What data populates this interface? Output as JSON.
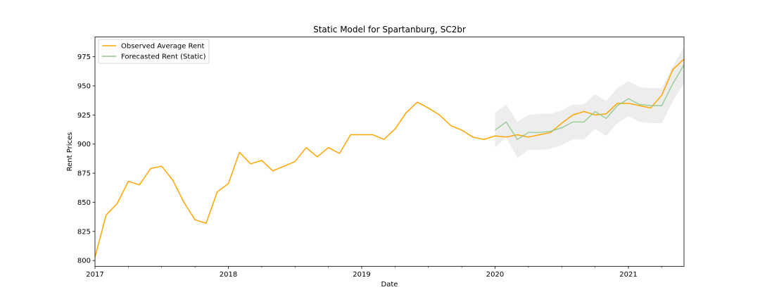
{
  "chart_data": {
    "type": "line",
    "title": "Static Model for Spartanburg, SC2br",
    "xlabel": "Date",
    "ylabel": "Rent Prices",
    "xlim": [
      "2017-01",
      "2021-06"
    ],
    "ylim": [
      795,
      992
    ],
    "x_ticks": [
      "2017",
      "2018",
      "2019",
      "2020",
      "2021"
    ],
    "y_ticks": [
      800,
      825,
      850,
      875,
      900,
      925,
      950,
      975
    ],
    "grid": false,
    "legend_position": "upper-left",
    "series": [
      {
        "name": "Observed Average Rent",
        "color": "#ffa500",
        "x": [
          "2017-01",
          "2017-02",
          "2017-03",
          "2017-04",
          "2017-05",
          "2017-06",
          "2017-07",
          "2017-08",
          "2017-09",
          "2017-10",
          "2017-11",
          "2017-12",
          "2018-01",
          "2018-02",
          "2018-03",
          "2018-04",
          "2018-05",
          "2018-06",
          "2018-07",
          "2018-08",
          "2018-09",
          "2018-10",
          "2018-11",
          "2018-12",
          "2019-01",
          "2019-02",
          "2019-03",
          "2019-04",
          "2019-05",
          "2019-06",
          "2019-07",
          "2019-08",
          "2019-09",
          "2019-10",
          "2019-11",
          "2019-12",
          "2020-01",
          "2020-02",
          "2020-03",
          "2020-04",
          "2020-05",
          "2020-06",
          "2020-07",
          "2020-08",
          "2020-09",
          "2020-10",
          "2020-11",
          "2020-12",
          "2021-01",
          "2021-02",
          "2021-03",
          "2021-04",
          "2021-05",
          "2021-06"
        ],
        "values": [
          803,
          839,
          849,
          868,
          865,
          879,
          881,
          869,
          850,
          835,
          832,
          859,
          866,
          893,
          883,
          886,
          877,
          881,
          885,
          897,
          889,
          897,
          892,
          908,
          908,
          908,
          904,
          913,
          927,
          936,
          931,
          925,
          916,
          912,
          906,
          904,
          907,
          906,
          908,
          906,
          908,
          910,
          918,
          925,
          928,
          925,
          926,
          935,
          935,
          933,
          931,
          942,
          964,
          973
        ]
      },
      {
        "name": "Forecasted Rent (Static)",
        "color": "#8bc98b",
        "x": [
          "2020-01",
          "2020-02",
          "2020-03",
          "2020-04",
          "2020-05",
          "2020-06",
          "2020-07",
          "2020-08",
          "2020-09",
          "2020-10",
          "2020-11",
          "2020-12",
          "2021-01",
          "2021-02",
          "2021-03",
          "2021-04",
          "2021-05",
          "2021-06"
        ],
        "values": [
          912,
          919,
          904,
          910,
          910,
          911,
          914,
          919,
          919,
          928,
          922,
          933,
          939,
          934,
          933,
          933,
          952,
          968
        ],
        "ci_lower": [
          897,
          906,
          888,
          895,
          895,
          896,
          899,
          904,
          904,
          913,
          907,
          918,
          924,
          919,
          918,
          918,
          937,
          952
        ],
        "ci_upper": [
          927,
          934,
          919,
          925,
          926,
          926,
          929,
          934,
          934,
          943,
          937,
          948,
          954,
          949,
          948,
          948,
          967,
          983
        ]
      }
    ]
  }
}
